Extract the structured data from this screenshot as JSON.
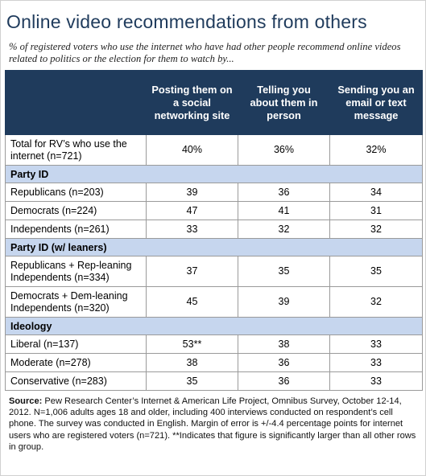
{
  "title": "Online video recommendations from others",
  "subtitle": "% of registered voters who use the internet who have had other people recommend online videos related to politics or the election for them to watch by...",
  "chart_data": {
    "type": "table",
    "columns": [
      "",
      "Posting them on a social networking site",
      "Telling you about them in person",
      "Sending you an email or text message"
    ],
    "rows": [
      {
        "kind": "data",
        "label": "Total for RV’s who use the internet (n=721)",
        "values": [
          "40%",
          "36%",
          "32%"
        ]
      },
      {
        "kind": "group",
        "label": "Party ID"
      },
      {
        "kind": "data",
        "label": "Republicans (n=203)",
        "values": [
          "39",
          "36",
          "34"
        ]
      },
      {
        "kind": "data",
        "label": "Democrats (n=224)",
        "values": [
          "47",
          "41",
          "31"
        ]
      },
      {
        "kind": "data",
        "label": "Independents (n=261)",
        "values": [
          "33",
          "32",
          "32"
        ]
      },
      {
        "kind": "group",
        "label": "Party ID (w/ leaners)"
      },
      {
        "kind": "data",
        "label": "Republicans + Rep-leaning Independents (n=334)",
        "values": [
          "37",
          "35",
          "35"
        ]
      },
      {
        "kind": "data",
        "label": "Democrats + Dem-leaning Independents (n=320)",
        "values": [
          "45",
          "39",
          "32"
        ]
      },
      {
        "kind": "group",
        "label": "Ideology"
      },
      {
        "kind": "data",
        "label": "Liberal (n=137)",
        "values": [
          "53**",
          "38",
          "33"
        ]
      },
      {
        "kind": "data",
        "label": "Moderate (n=278)",
        "values": [
          "38",
          "36",
          "33"
        ]
      },
      {
        "kind": "data",
        "label": "Conservative (n=283)",
        "values": [
          "35",
          "36",
          "33"
        ]
      }
    ]
  },
  "source": {
    "label": "Source:",
    "text": " Pew Research Center’s Internet & American Life Project, Omnibus Survey, October 12-14, 2012. N=1,006 adults ages 18 and older, including 400 interviews conducted on respondent’s cell phone. The survey was conducted in English. Margin of error is +/-4.4 percentage points for internet users who are registered voters (n=721). **Indicates that figure is significantly larger than all other rows in group."
  },
  "colors": {
    "title": "#1f3b5c",
    "header_bg": "#1f3b5c",
    "group_bg": "#c6d6ee",
    "border": "#9a9a9a"
  }
}
